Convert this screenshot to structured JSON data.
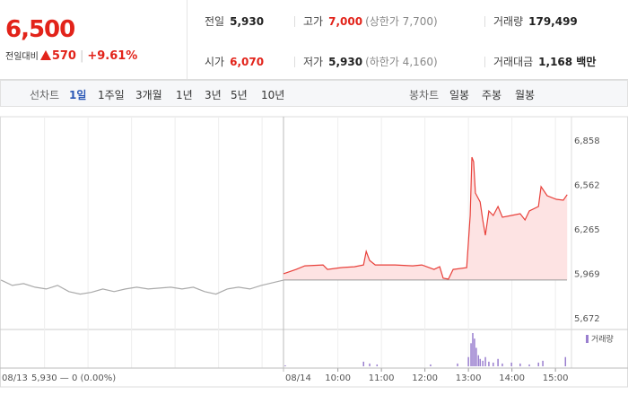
{
  "quote": {
    "price": "6,500",
    "change_label": "전일대비",
    "change": "570",
    "change_pct": "+9.61%",
    "color": "#e2231a"
  },
  "summary": [
    [
      {
        "label": "전일",
        "value": "5,930"
      },
      {
        "label": "고가",
        "value": "7,000",
        "note": "(상한가 7,700)",
        "color": "#e2231a"
      },
      {
        "label": "거래량",
        "value": "179,499"
      }
    ],
    [
      {
        "label": "시가",
        "value": "6,070",
        "color": "#e2231a"
      },
      {
        "label": "저가",
        "value": "5,930",
        "note": "(하한가 4,160)"
      },
      {
        "label": "거래대금",
        "value": "1,168 백만"
      }
    ]
  ],
  "tabs": {
    "line_label": "선차트",
    "line": [
      "1일",
      "1주일",
      "3개월",
      "1년",
      "3년",
      "5년",
      "10년"
    ],
    "line_active": 0,
    "candle_label": "봉차트",
    "candle": [
      "일봉",
      "주봉",
      "월봉"
    ]
  },
  "chart_data": {
    "type": "line",
    "ylim": [
      5612,
      7020
    ],
    "yticks": [
      {
        "value": 6858,
        "label": "6,858"
      },
      {
        "value": 6562,
        "label": "6,562"
      },
      {
        "value": 6265,
        "label": "6,265"
      },
      {
        "value": 5969,
        "label": "5,969"
      },
      {
        "value": 5672,
        "label": "5,672"
      }
    ],
    "xlim": [
      8.75,
      15.5
    ],
    "xticks": [
      {
        "value": 10,
        "label": "10:00"
      },
      {
        "value": 11,
        "label": "11:00"
      },
      {
        "value": 12,
        "label": "12:00"
      },
      {
        "value": 13,
        "label": "13:00"
      },
      {
        "value": 14,
        "label": "14:00"
      },
      {
        "value": 15,
        "label": "15:00"
      }
    ],
    "reference": 5930,
    "days": [
      {
        "label": "08/13",
        "note": "5,930 — 0 (0.00%)",
        "color": "#aaaaaa",
        "x": [
          9.0,
          9.26,
          9.52,
          9.78,
          10.04,
          10.3,
          10.56,
          10.82,
          11.08,
          11.34,
          11.6,
          11.86,
          12.12,
          12.38,
          12.64,
          12.9,
          13.16,
          13.42,
          13.68,
          13.94,
          14.2,
          14.46,
          14.72,
          14.98,
          15.24,
          15.5
        ],
        "values": [
          5930,
          5894,
          5906,
          5882,
          5870,
          5894,
          5853,
          5836,
          5848,
          5870,
          5853,
          5870,
          5882,
          5870,
          5876,
          5882,
          5870,
          5882,
          5853,
          5836,
          5870,
          5882,
          5870,
          5894,
          5912,
          5930
        ]
      },
      {
        "label": "08/14",
        "color": "#e8403a",
        "x": [
          8.75,
          9.04,
          9.24,
          9.66,
          9.76,
          10.07,
          10.38,
          10.59,
          10.65,
          10.73,
          10.86,
          11.31,
          11.72,
          11.93,
          12.21,
          12.34,
          12.42,
          12.54,
          12.65,
          12.96,
          13.04,
          13.08,
          13.12,
          13.16,
          13.27,
          13.33,
          13.39,
          13.47,
          13.57,
          13.68,
          13.78,
          13.99,
          14.19,
          14.3,
          14.4,
          14.61,
          14.67,
          14.81,
          15.02,
          15.18,
          15.27
        ],
        "values": [
          5972,
          6001,
          6025,
          6031,
          6001,
          6013,
          6019,
          6031,
          6121,
          6061,
          6031,
          6031,
          6025,
          6031,
          6001,
          6019,
          5942,
          5936,
          6001,
          6013,
          6361,
          6750,
          6720,
          6511,
          6451,
          6331,
          6229,
          6391,
          6361,
          6421,
          6349,
          6361,
          6373,
          6331,
          6391,
          6421,
          6553,
          6493,
          6469,
          6463,
          6500
        ]
      }
    ],
    "volume": {
      "name": "거래량",
      "color": "#9a7fcf",
      "x": [
        8.79,
        10.59,
        10.73,
        10.9,
        12.13,
        12.75,
        13.0,
        13.06,
        13.1,
        13.14,
        13.18,
        13.23,
        13.27,
        13.33,
        13.39,
        13.47,
        13.57,
        13.68,
        13.78,
        13.99,
        14.19,
        14.4,
        14.61,
        14.71,
        15.23
      ],
      "values": [
        800,
        4000,
        2400,
        1600,
        1600,
        2400,
        8000,
        20000,
        28800,
        24000,
        16000,
        9600,
        6400,
        4800,
        8000,
        4000,
        3200,
        6400,
        2400,
        3200,
        2400,
        1600,
        3200,
        4800,
        8000
      ]
    }
  }
}
